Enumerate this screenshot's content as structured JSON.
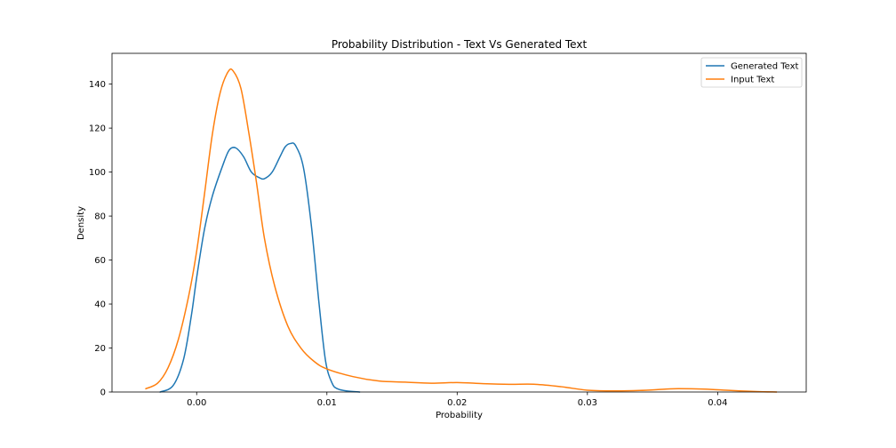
{
  "chart_data": {
    "type": "line",
    "title": "Probability Distribution - Text Vs Generated Text",
    "xlabel": "Probability",
    "ylabel": "Density",
    "xlim": [
      -0.0065,
      0.0468
    ],
    "ylim": [
      0,
      154
    ],
    "xticks": [
      0.0,
      0.01,
      0.02,
      0.03,
      0.04
    ],
    "xtick_labels": [
      "0.00",
      "0.01",
      "0.02",
      "0.03",
      "0.04"
    ],
    "yticks": [
      0,
      20,
      40,
      60,
      80,
      100,
      120,
      140
    ],
    "ytick_labels": [
      "0",
      "20",
      "40",
      "60",
      "80",
      "100",
      "120",
      "140"
    ],
    "grid": false,
    "legend_position": "top-right",
    "series": [
      {
        "name": "Generated Text",
        "color": "#1f77b4",
        "x": [
          -0.0028,
          -0.0018,
          -0.001,
          -0.0004,
          0.0,
          0.0006,
          0.0012,
          0.002,
          0.0025,
          0.003,
          0.0036,
          0.0042,
          0.0048,
          0.0052,
          0.0058,
          0.0064,
          0.0068,
          0.0072,
          0.0076,
          0.0082,
          0.0088,
          0.0094,
          0.0099,
          0.0104,
          0.0108,
          0.0115,
          0.0125
        ],
        "y": [
          0,
          3,
          15,
          35,
          52,
          74,
          89,
          103,
          110,
          111,
          107,
          100,
          97.5,
          97,
          100,
          107,
          111.5,
          113,
          112,
          102,
          76,
          40,
          14,
          4,
          1.5,
          0.5,
          0
        ]
      },
      {
        "name": "Input Text",
        "color": "#ff7f0e",
        "x": [
          -0.0039,
          -0.003,
          -0.0022,
          -0.0014,
          -0.0006,
          0.0,
          0.0006,
          0.0012,
          0.0018,
          0.0024,
          0.0028,
          0.0034,
          0.004,
          0.0046,
          0.0052,
          0.006,
          0.007,
          0.008,
          0.009,
          0.01,
          0.012,
          0.014,
          0.016,
          0.018,
          0.02,
          0.022,
          0.024,
          0.026,
          0.028,
          0.03,
          0.032,
          0.034,
          0.036,
          0.037,
          0.039,
          0.041,
          0.043,
          0.0445
        ],
        "y": [
          1.5,
          4,
          11,
          24,
          44,
          64,
          90,
          117,
          136,
          145.5,
          146,
          138,
          118,
          95,
          70,
          48,
          30,
          20,
          14,
          10.5,
          7,
          5,
          4.5,
          4,
          4.3,
          3.8,
          3.5,
          3.5,
          2.4,
          0.8,
          0.5,
          0.7,
          1.3,
          1.5,
          1.3,
          0.7,
          0.2,
          0
        ]
      }
    ]
  }
}
